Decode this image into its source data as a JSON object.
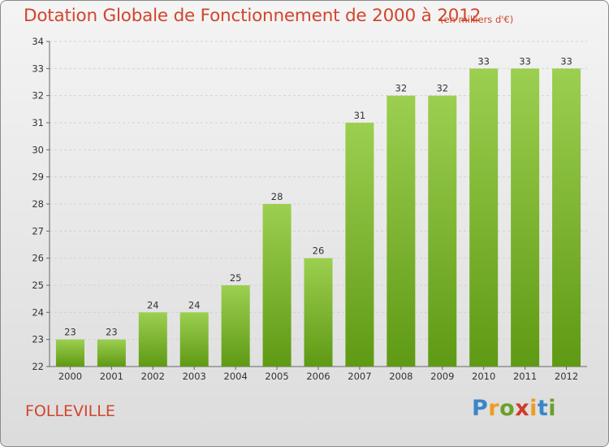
{
  "header": {
    "title": "Dotation Globale de Fonctionnement de 2000 à 2012",
    "subtitle": "(en milliers d'€)"
  },
  "footer": {
    "town": "FOLLEVILLE",
    "logo_letters": [
      "P",
      "r",
      "o",
      "x",
      "i",
      "t",
      "i"
    ]
  },
  "colors": {
    "title": "#d2452c",
    "bar_top": "#9ccf50",
    "bar_bottom": "#5f9a14"
  },
  "chart_data": {
    "type": "bar",
    "title": "Dotation Globale de Fonctionnement de 2000 à 2012",
    "subtitle": "(en milliers d'€)",
    "xlabel": "",
    "ylabel": "",
    "categories": [
      "2000",
      "2001",
      "2002",
      "2003",
      "2004",
      "2005",
      "2006",
      "2007",
      "2008",
      "2009",
      "2010",
      "2011",
      "2012"
    ],
    "values": [
      23,
      23,
      24,
      24,
      25,
      28,
      26,
      31,
      32,
      32,
      33,
      33,
      33
    ],
    "data_labels": [
      "23",
      "23",
      "24",
      "24",
      "25",
      "28",
      "26",
      "31",
      "32",
      "32",
      "33",
      "33",
      "33"
    ],
    "ylim": [
      22,
      34
    ],
    "yticks": [
      "22",
      "23",
      "24",
      "25",
      "26",
      "27",
      "28",
      "29",
      "30",
      "31",
      "32",
      "33",
      "34"
    ],
    "grid": "horizontal"
  }
}
